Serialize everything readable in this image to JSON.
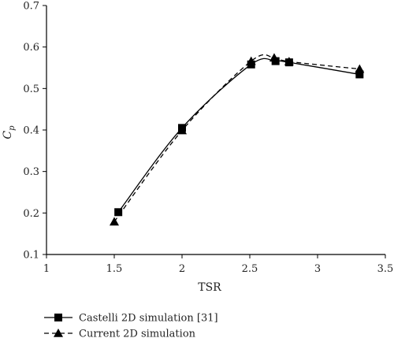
{
  "chart_data": {
    "type": "line",
    "title": "",
    "xlabel": "TSR",
    "ylabel": "C",
    "ylabel_sub": "p",
    "xlim": [
      1,
      3.5
    ],
    "ylim": [
      0.1,
      0.7
    ],
    "x_ticks": [
      "1",
      "1.5",
      "2",
      "2.5",
      "3",
      "3.5"
    ],
    "y_ticks": [
      "0.1",
      "0.2",
      "0.3",
      "0.4",
      "0.5",
      "0.6",
      "0.7"
    ],
    "grid": false,
    "legend_position": "bottom-left, below plot",
    "series": [
      {
        "name": "Castelli 2D simulation [31]",
        "marker": "square",
        "line_style": "solid",
        "color": "#000000",
        "x": [
          1.53,
          2.0,
          2.51,
          2.69,
          2.79,
          3.31
        ],
        "y": [
          0.202,
          0.405,
          0.558,
          0.566,
          0.563,
          0.534
        ]
      },
      {
        "name": "Current 2D simulation",
        "marker": "triangle",
        "line_style": "dashed",
        "color": "#000000",
        "x": [
          1.5,
          2.0,
          2.51,
          2.68,
          2.79,
          3.31
        ],
        "y": [
          0.179,
          0.399,
          0.566,
          0.574,
          0.565,
          0.547
        ]
      }
    ]
  }
}
